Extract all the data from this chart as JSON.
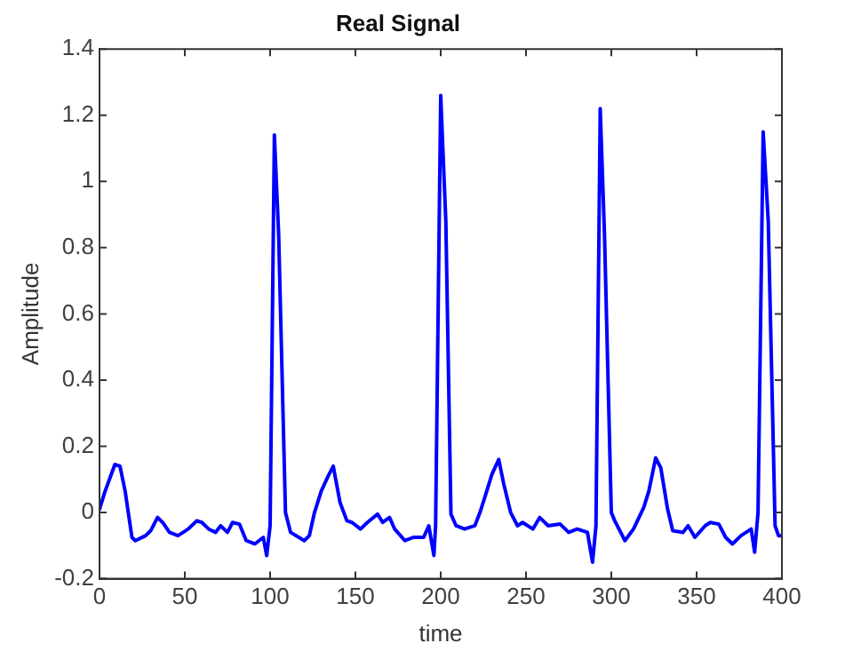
{
  "chart_data": {
    "type": "line",
    "title": "Real Signal",
    "xlabel": "time",
    "ylabel": "Amplitude",
    "xlim": [
      0,
      400
    ],
    "xticks": [
      0,
      50,
      100,
      150,
      200,
      250,
      300,
      350,
      400
    ],
    "ylim": [
      -0.2,
      1.4
    ],
    "yticks": [
      -0.2,
      0,
      0.2,
      0.4,
      0.6,
      0.8,
      1,
      1.2,
      1.4
    ],
    "grid": false,
    "legend": false,
    "marker": "none",
    "line_style": "solid",
    "series": [
      {
        "color": "#0000ff",
        "x": [
          0,
          3,
          9,
          12,
          15,
          19,
          21,
          27,
          30,
          34,
          37,
          41,
          46,
          52,
          57,
          60,
          64,
          68,
          71,
          75,
          78,
          82,
          86,
          91,
          96,
          98,
          100,
          102.5,
          105,
          109,
          112,
          120,
          123,
          126,
          130,
          134,
          137,
          141,
          145,
          148,
          153,
          157,
          163,
          166,
          170,
          173,
          179,
          184,
          190,
          193,
          196,
          197,
          200,
          203,
          206,
          209,
          214,
          220,
          223,
          227,
          230,
          234,
          237,
          241,
          245,
          248,
          254,
          258,
          263,
          270,
          275,
          280,
          286,
          289,
          291,
          293.5,
          296,
          300,
          302,
          308,
          313,
          319,
          322,
          326,
          329,
          333,
          336,
          342,
          345,
          349,
          355,
          358,
          363,
          367,
          371,
          376,
          382,
          384,
          386,
          389,
          392,
          396,
          398,
          400
        ],
        "values": [
          0.01,
          0.06,
          0.145,
          0.14,
          0.065,
          -0.075,
          -0.085,
          -0.07,
          -0.055,
          -0.015,
          -0.03,
          -0.06,
          -0.07,
          -0.05,
          -0.025,
          -0.03,
          -0.05,
          -0.06,
          -0.04,
          -0.06,
          -0.03,
          -0.035,
          -0.085,
          -0.095,
          -0.075,
          -0.13,
          -0.04,
          1.14,
          0.84,
          0,
          -0.06,
          -0.085,
          -0.07,
          0,
          0.065,
          0.11,
          0.14,
          0.03,
          -0.025,
          -0.03,
          -0.05,
          -0.03,
          -0.005,
          -0.03,
          -0.015,
          -0.05,
          -0.085,
          -0.075,
          -0.075,
          -0.04,
          -0.13,
          -0.04,
          1.26,
          0.88,
          -0.005,
          -0.04,
          -0.05,
          -0.04,
          0,
          0.065,
          0.115,
          0.16,
          0.085,
          0,
          -0.04,
          -0.03,
          -0.05,
          -0.015,
          -0.04,
          -0.035,
          -0.06,
          -0.05,
          -0.06,
          -0.15,
          -0.04,
          1.22,
          0.84,
          0,
          -0.025,
          -0.085,
          -0.05,
          0.015,
          0.065,
          0.165,
          0.135,
          0.01,
          -0.055,
          -0.06,
          -0.04,
          -0.075,
          -0.04,
          -0.03,
          -0.035,
          -0.075,
          -0.095,
          -0.07,
          -0.05,
          -0.12,
          0,
          1.15,
          0.88,
          -0.04,
          -0.07,
          -0.07
        ]
      }
    ]
  }
}
